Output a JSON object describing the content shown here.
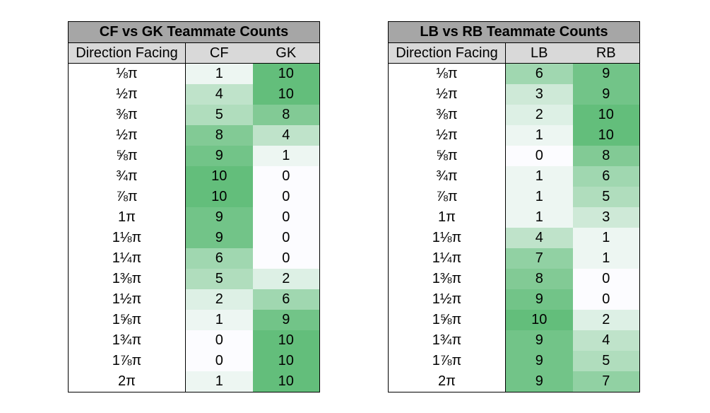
{
  "chart_data": [
    {
      "type": "table",
      "title": "CF vs GK Teammate Counts",
      "columns": [
        "Direction Facing",
        "CF",
        "GK"
      ],
      "rows": [
        {
          "direction": "⅛π",
          "values": [
            1,
            10
          ]
        },
        {
          "direction": "½π",
          "values": [
            4,
            10
          ]
        },
        {
          "direction": "⅜π",
          "values": [
            5,
            8
          ]
        },
        {
          "direction": "½π",
          "values": [
            8,
            4
          ]
        },
        {
          "direction": "⅝π",
          "values": [
            9,
            1
          ]
        },
        {
          "direction": "¾π",
          "values": [
            10,
            0
          ]
        },
        {
          "direction": "⅞π",
          "values": [
            10,
            0
          ]
        },
        {
          "direction": "1π",
          "values": [
            9,
            0
          ]
        },
        {
          "direction": "1⅛π",
          "values": [
            9,
            0
          ]
        },
        {
          "direction": "1¼π",
          "values": [
            6,
            0
          ]
        },
        {
          "direction": "1⅜π",
          "values": [
            5,
            2
          ]
        },
        {
          "direction": "1½π",
          "values": [
            2,
            6
          ]
        },
        {
          "direction": "1⅝π",
          "values": [
            1,
            9
          ]
        },
        {
          "direction": "1¾π",
          "values": [
            0,
            10
          ]
        },
        {
          "direction": "1⅞π",
          "values": [
            0,
            10
          ]
        },
        {
          "direction": "2π",
          "values": [
            1,
            10
          ]
        }
      ],
      "value_range": [
        0,
        10
      ],
      "colors": {
        "min": "#fcfcff",
        "max": "#63be7b",
        "title_bg": "#a6a6a6",
        "header_bg": "#d9d9d9"
      }
    },
    {
      "type": "table",
      "title": "LB vs RB Teammate Counts",
      "columns": [
        "Direction Facing",
        "LB",
        "RB"
      ],
      "rows": [
        {
          "direction": "⅛π",
          "values": [
            6,
            9
          ]
        },
        {
          "direction": "½π",
          "values": [
            3,
            9
          ]
        },
        {
          "direction": "⅜π",
          "values": [
            2,
            10
          ]
        },
        {
          "direction": "½π",
          "values": [
            1,
            10
          ]
        },
        {
          "direction": "⅝π",
          "values": [
            0,
            8
          ]
        },
        {
          "direction": "¾π",
          "values": [
            1,
            6
          ]
        },
        {
          "direction": "⅞π",
          "values": [
            1,
            5
          ]
        },
        {
          "direction": "1π",
          "values": [
            1,
            3
          ]
        },
        {
          "direction": "1⅛π",
          "values": [
            4,
            1
          ]
        },
        {
          "direction": "1¼π",
          "values": [
            7,
            1
          ]
        },
        {
          "direction": "1⅜π",
          "values": [
            8,
            0
          ]
        },
        {
          "direction": "1½π",
          "values": [
            9,
            0
          ]
        },
        {
          "direction": "1⅝π",
          "values": [
            10,
            2
          ]
        },
        {
          "direction": "1¾π",
          "values": [
            9,
            4
          ]
        },
        {
          "direction": "1⅞π",
          "values": [
            9,
            5
          ]
        },
        {
          "direction": "2π",
          "values": [
            9,
            7
          ]
        }
      ],
      "value_range": [
        0,
        10
      ],
      "colors": {
        "min": "#fcfcff",
        "max": "#63be7b",
        "title_bg": "#a6a6a6",
        "header_bg": "#d9d9d9"
      }
    }
  ]
}
